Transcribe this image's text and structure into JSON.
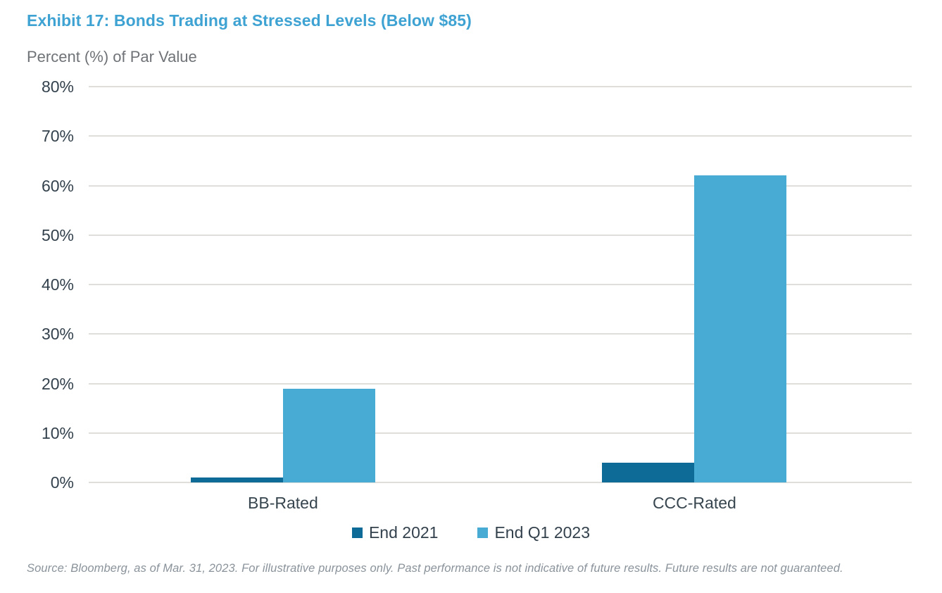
{
  "title": "Exhibit 17: Bonds Trading at Stressed Levels (Below $85)",
  "source": "Source: Bloomberg, as of Mar. 31, 2023. For illustrative purposes only. Past performance is not indicative of future results. Future results are not guaranteed.",
  "colors": {
    "title": "#3EA2D2",
    "subtitle": "#6F7377",
    "axis_text": "#33414D",
    "grid": "#DFDEDA",
    "source_text": "#8A939B",
    "end_2021": "#0E6A96",
    "end_q1_2023": "#47ABD3"
  },
  "chart_data": {
    "type": "bar",
    "categories": [
      "BB-Rated",
      "CCC-Rated"
    ],
    "series": [
      {
        "name": "End 2021",
        "color": "#0E6A96",
        "values": [
          1,
          4
        ]
      },
      {
        "name": "End Q1 2023",
        "color": "#47ABD3",
        "values": [
          19,
          62
        ]
      }
    ],
    "title": "Exhibit 17: Bonds Trading at Stressed Levels (Below $85)",
    "xlabel": "",
    "ylabel": "Percent (%) of Par Value",
    "ylim": [
      0,
      80
    ],
    "ytick_step": 10,
    "ytick_suffix": "%",
    "grid": true,
    "legend_position": "bottom-center"
  }
}
